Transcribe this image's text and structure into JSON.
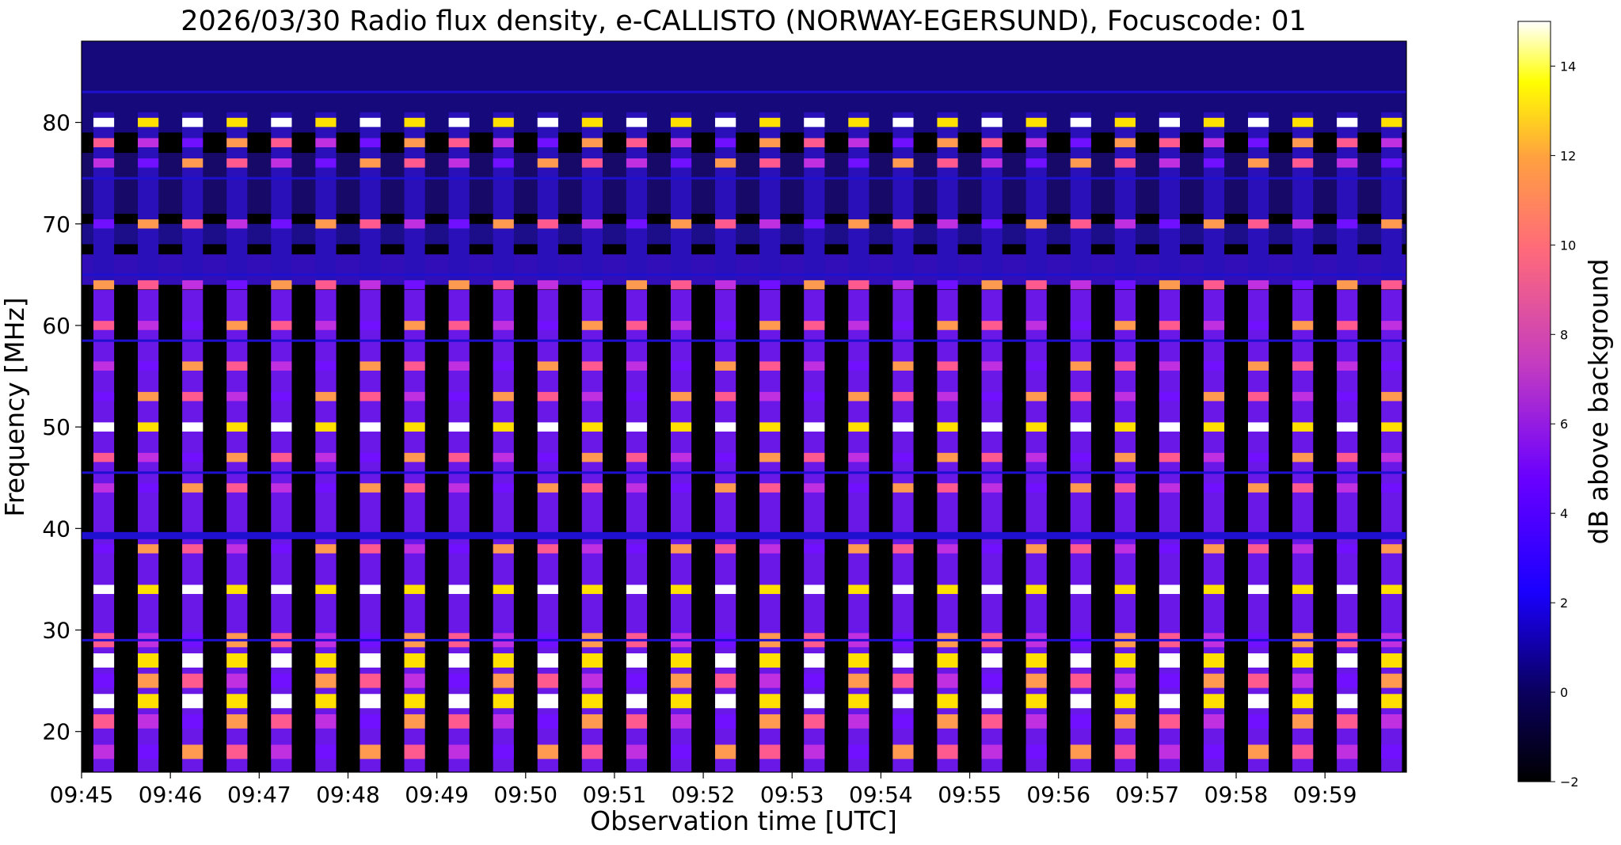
{
  "chart_data": {
    "type": "heatmap",
    "title": "2026/03/30  Radio flux density, e-CALLISTO (NORWAY-EGERSUND), Focuscode: 01",
    "xlabel": "Observation time [UTC]",
    "ylabel": "Frequency [MHz]",
    "colorbar_label": "dB above background",
    "colormap": "gnuplot2",
    "xlim": [
      "09:45:00",
      "09:59:55"
    ],
    "ylim": [
      16,
      88
    ],
    "clim": [
      -2,
      15
    ],
    "x_ticks": [
      "09:45",
      "09:46",
      "09:47",
      "09:48",
      "09:49",
      "09:50",
      "09:51",
      "09:52",
      "09:53",
      "09:54",
      "09:55",
      "09:56",
      "09:57",
      "09:58",
      "09:59"
    ],
    "y_ticks": [
      "20",
      "30",
      "40",
      "50",
      "60",
      "70",
      "80"
    ],
    "colorbar_ticks": [
      "−2",
      "0",
      "2",
      "4",
      "6",
      "8",
      "10",
      "12",
      "14"
    ],
    "burst_cycle_seconds": 30,
    "burst_columns_seconds_from_start": [
      15,
      45,
      75,
      105,
      135,
      165,
      195,
      225,
      255,
      285,
      315,
      345,
      375,
      405,
      435,
      465,
      495,
      525,
      555,
      585,
      615,
      645,
      675,
      705,
      735,
      765,
      795,
      825,
      855,
      885
    ],
    "burst_column_duration_seconds": 14,
    "strong_frequency_bands_mhz": [
      80,
      78,
      76,
      70,
      64,
      60,
      56,
      53,
      50,
      47,
      44,
      38,
      34,
      29,
      27,
      25,
      23,
      21,
      18
    ],
    "persistent_noise_lines_mhz": [
      39.3,
      29.0,
      45.5,
      58.5,
      65,
      74.5,
      83
    ]
  }
}
